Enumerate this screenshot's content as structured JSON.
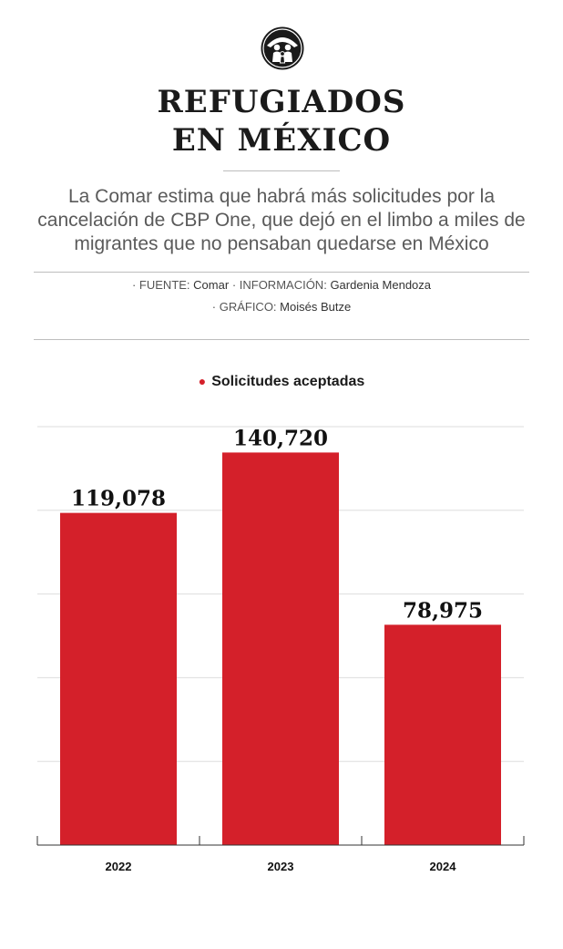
{
  "header": {
    "logo_icon": "refugee-family-icon",
    "title_line1": "REFUGIADOS",
    "title_line2": "EN MÉXICO",
    "subtitle": "La Comar estima que habrá más solicitudes por la cancelación de CBP One, que dejó en el limbo a miles de migrantes que no pensaban quedarse en México"
  },
  "credits": {
    "fuente_label": "· FUENTE:",
    "fuente": "Comar",
    "info_label": "· INFORMACIÓN:",
    "info": "Gardenia Mendoza",
    "grafico_label": "· GRÁFICO:",
    "grafico": "Moisés Butze"
  },
  "colors": {
    "bar": "#d4202a",
    "text": "#111111",
    "grid": "#dddddd"
  },
  "chart_data": {
    "type": "bar",
    "title": "",
    "legend": [
      "Solicitudes aceptadas"
    ],
    "categories": [
      "2022",
      "2023",
      "2024"
    ],
    "values": [
      119078,
      140720,
      78975
    ],
    "value_labels": [
      "119,078",
      "140,720",
      "78,975"
    ],
    "ylim": [
      0,
      150000
    ],
    "grid": true,
    "xlabel": "",
    "ylabel": ""
  }
}
